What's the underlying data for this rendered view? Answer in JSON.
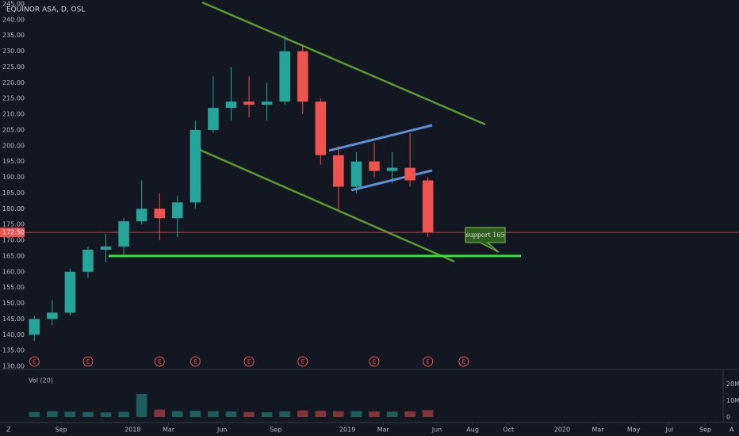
{
  "chart_data": {
    "type": "candlestick",
    "title": "EQUINOR ASA, D, OSL",
    "x": [
      "2017-07",
      "2017-08",
      "2017-09",
      "2017-10",
      "2017-11",
      "2017-12",
      "2018-01",
      "2018-02",
      "2018-03",
      "2018-04",
      "2018-05",
      "2018-06",
      "2018-07",
      "2018-08",
      "2018-09",
      "2018-10",
      "2018-11",
      "2018-12",
      "2019-01",
      "2019-02",
      "2019-03",
      "2019-04",
      "2019-05"
    ],
    "open": [
      140,
      145,
      147,
      160,
      167,
      168,
      176,
      180,
      177,
      182,
      205,
      212,
      214,
      213,
      214,
      230,
      214,
      197,
      187,
      195,
      192,
      193,
      189
    ],
    "high": [
      146,
      151,
      161,
      168,
      172,
      177,
      189,
      185,
      184,
      208,
      222,
      225,
      222,
      220,
      235,
      232,
      215,
      200,
      198,
      201,
      198,
      204,
      190
    ],
    "low": [
      138,
      143,
      146,
      158,
      163,
      165,
      175,
      170,
      171,
      180,
      204,
      208,
      209,
      208,
      213,
      210,
      194,
      179,
      185,
      190,
      188,
      187,
      171
    ],
    "close": [
      145,
      147,
      160,
      167,
      168,
      176,
      180,
      177,
      182,
      205,
      212,
      214,
      213,
      214,
      230,
      214,
      197,
      187,
      195,
      192,
      193,
      189,
      172.5
    ],
    "up_color": "#26a69a",
    "down_color": "#ef5350",
    "xlim": [
      "2017-07",
      "2020-10"
    ],
    "xticks": [
      {
        "value": "2017-09",
        "label": "Sep"
      },
      {
        "value": "2018-01",
        "label": "2018"
      },
      {
        "value": "2018-03",
        "label": "Mar"
      },
      {
        "value": "2018-06",
        "label": "Jun"
      },
      {
        "value": "2018-09",
        "label": "Sep"
      },
      {
        "value": "2019-01",
        "label": "2019"
      },
      {
        "value": "2019-03",
        "label": "Mar"
      },
      {
        "value": "2019-06",
        "label": "Jun"
      },
      {
        "value": "2019-08",
        "label": "Aug"
      },
      {
        "value": "2019-10",
        "label": "Oct"
      },
      {
        "value": "2020-01",
        "label": "2020"
      },
      {
        "value": "2020-03",
        "label": "Mar"
      },
      {
        "value": "2020-05",
        "label": "May"
      },
      {
        "value": "2020-07",
        "label": "Jul"
      },
      {
        "value": "2020-09",
        "label": "Sep"
      }
    ],
    "ylim": [
      129.25,
      246.25
    ],
    "yticks": [
      {
        "value": 130,
        "label": "130.00"
      },
      {
        "value": 135,
        "label": "135.00"
      },
      {
        "value": 140,
        "label": "140.00"
      },
      {
        "value": 145,
        "label": "145.00"
      },
      {
        "value": 150,
        "label": "150.00"
      },
      {
        "value": 155,
        "label": "155.00"
      },
      {
        "value": 160,
        "label": "160.00"
      },
      {
        "value": 165,
        "label": "165.00"
      },
      {
        "value": 170,
        "label": "170.00"
      },
      {
        "value": 175,
        "label": "175.00"
      },
      {
        "value": 180,
        "label": "180.00"
      },
      {
        "value": 185,
        "label": "185.00"
      },
      {
        "value": 190,
        "label": "190.00"
      },
      {
        "value": 195,
        "label": "195.00"
      },
      {
        "value": 200,
        "label": "200.00"
      },
      {
        "value": 205,
        "label": "205.00"
      },
      {
        "value": 210,
        "label": "210.00"
      },
      {
        "value": 215,
        "label": "215.00"
      },
      {
        "value": 220,
        "label": "220.00"
      },
      {
        "value": 225,
        "label": "225.00"
      },
      {
        "value": 230,
        "label": "230.00"
      },
      {
        "value": 235,
        "label": "235.00"
      },
      {
        "value": 240,
        "label": "240.00"
      },
      {
        "value": 245,
        "label": "245.00"
      }
    ],
    "last_price": {
      "value": 172.5,
      "label": "172.50"
    },
    "support_level": 165,
    "annotation": "support 165",
    "earnings": {
      "label": "E",
      "x": [
        "2017-07",
        "2017-10",
        "2018-02",
        "2018-04",
        "2018-07",
        "2018-10",
        "2019-02",
        "2019-05",
        "2019-07"
      ]
    },
    "volume": {
      "title": "Vol (20)",
      "values": [
        3000000,
        3500000,
        3200000,
        3000000,
        2800000,
        3100000,
        14000000,
        4500000,
        3600000,
        3800000,
        3500000,
        3300000,
        3000000,
        2900000,
        3400000,
        4000000,
        3800000,
        3500000,
        3600000,
        3300000,
        3200000,
        3400000,
        4200000
      ],
      "ylim": [
        0,
        27000000
      ],
      "yticks": [
        {
          "value": 20000000,
          "label": "20M"
        },
        {
          "value": 10000000,
          "label": "10M"
        },
        0
      ]
    },
    "buttons": [
      "Z",
      "A"
    ]
  }
}
